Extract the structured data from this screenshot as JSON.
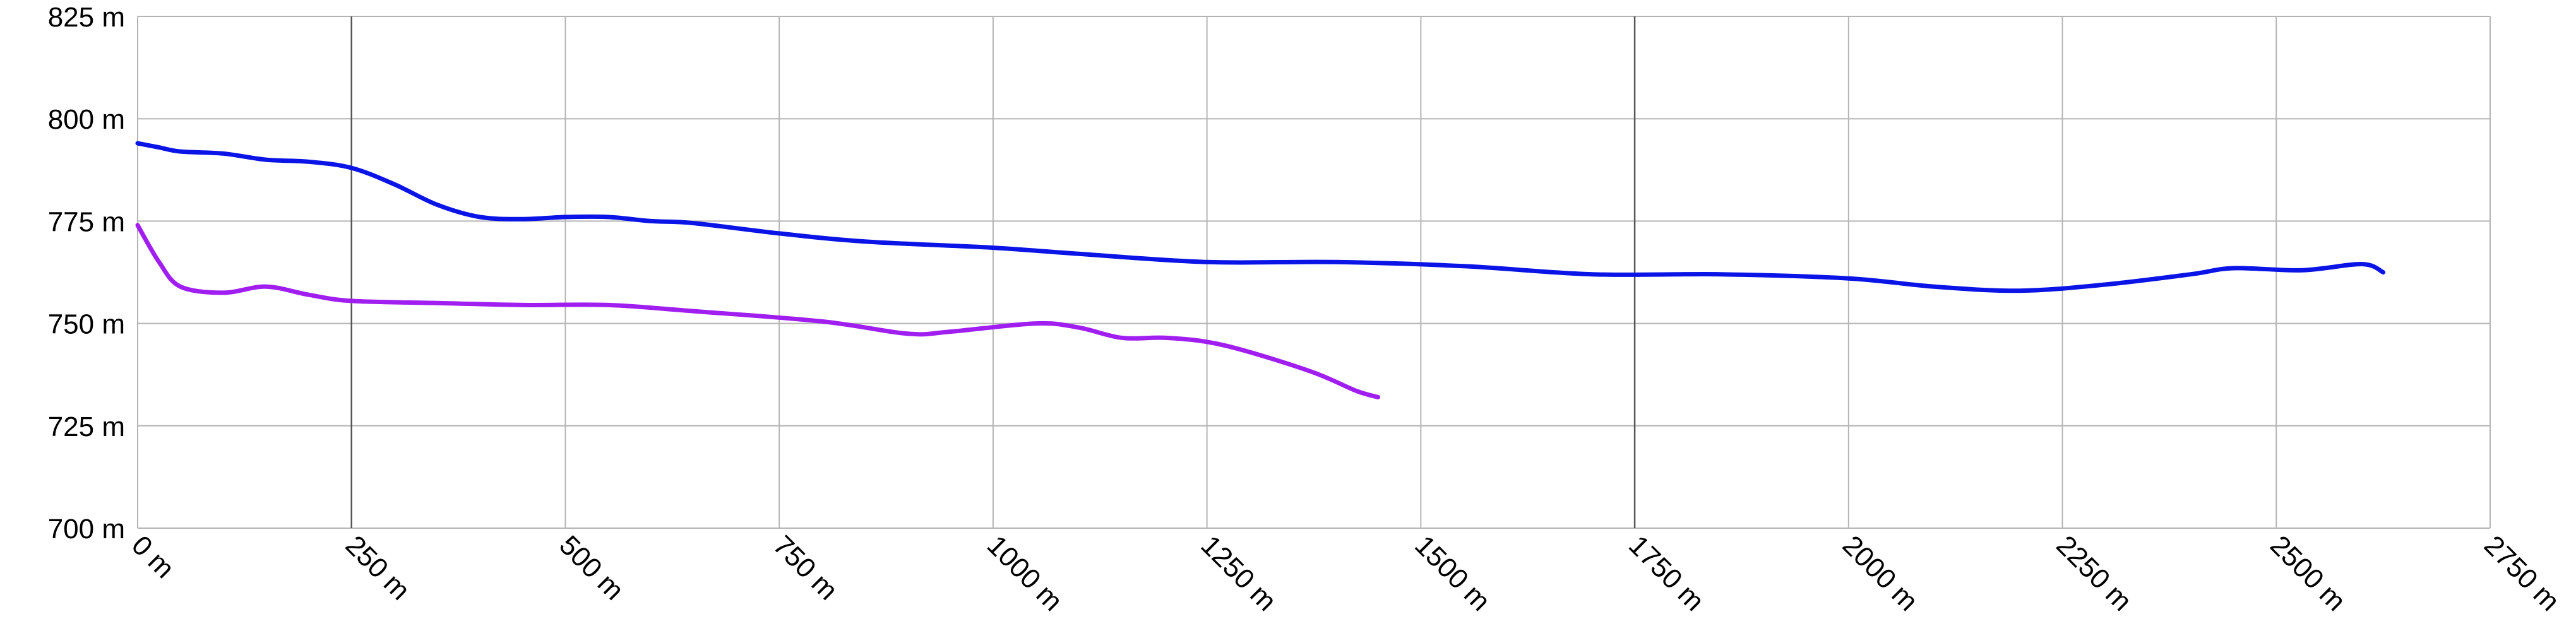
{
  "chart_data": {
    "type": "line",
    "title": "",
    "xlabel": "",
    "ylabel": "",
    "xlim": [
      0,
      2750
    ],
    "ylim": [
      700,
      825
    ],
    "grid": true,
    "x_ticks": [
      0,
      250,
      500,
      750,
      1000,
      1250,
      1500,
      1750,
      2000,
      2250,
      2500,
      2750
    ],
    "y_ticks": [
      700,
      725,
      750,
      775,
      800,
      825
    ],
    "x_tick_labels": [
      "0 m",
      "250 m",
      "500 m",
      "750 m",
      "1000 m",
      "1250 m",
      "1500 m",
      "1750 m",
      "2000 m",
      "2250 m",
      "2500 m",
      "2750 m"
    ],
    "y_tick_labels": [
      "700 m",
      "725 m",
      "750 m",
      "775 m",
      "800 m",
      "825 m"
    ],
    "series": [
      {
        "color": "#0a14e6",
        "points": [
          [
            0,
            794
          ],
          [
            25,
            793
          ],
          [
            50,
            792
          ],
          [
            100,
            791.5
          ],
          [
            150,
            790
          ],
          [
            200,
            789.5
          ],
          [
            250,
            788
          ],
          [
            300,
            784
          ],
          [
            350,
            779
          ],
          [
            400,
            776
          ],
          [
            450,
            775.5
          ],
          [
            500,
            776
          ],
          [
            550,
            776
          ],
          [
            600,
            775
          ],
          [
            650,
            774.5
          ],
          [
            750,
            772
          ],
          [
            850,
            770
          ],
          [
            1000,
            768.5
          ],
          [
            1100,
            767
          ],
          [
            1250,
            765
          ],
          [
            1400,
            765
          ],
          [
            1550,
            764
          ],
          [
            1700,
            762
          ],
          [
            1850,
            762
          ],
          [
            2000,
            761
          ],
          [
            2100,
            759
          ],
          [
            2200,
            758
          ],
          [
            2300,
            759.5
          ],
          [
            2400,
            762
          ],
          [
            2450,
            763.5
          ],
          [
            2530,
            763
          ],
          [
            2600,
            764.5
          ],
          [
            2625,
            762.5
          ]
        ]
      },
      {
        "color": "#a01ef0",
        "points": [
          [
            0,
            774
          ],
          [
            25,
            765
          ],
          [
            50,
            759
          ],
          [
            100,
            757.5
          ],
          [
            150,
            759
          ],
          [
            200,
            757
          ],
          [
            250,
            755.5
          ],
          [
            350,
            755
          ],
          [
            450,
            754.5
          ],
          [
            550,
            754.5
          ],
          [
            650,
            753
          ],
          [
            800,
            750.5
          ],
          [
            900,
            747.5
          ],
          [
            950,
            748
          ],
          [
            1050,
            750
          ],
          [
            1100,
            749
          ],
          [
            1150,
            746.5
          ],
          [
            1200,
            746.5
          ],
          [
            1250,
            745.5
          ],
          [
            1300,
            743
          ],
          [
            1375,
            738
          ],
          [
            1425,
            733.5
          ],
          [
            1450,
            732
          ]
        ]
      }
    ]
  }
}
